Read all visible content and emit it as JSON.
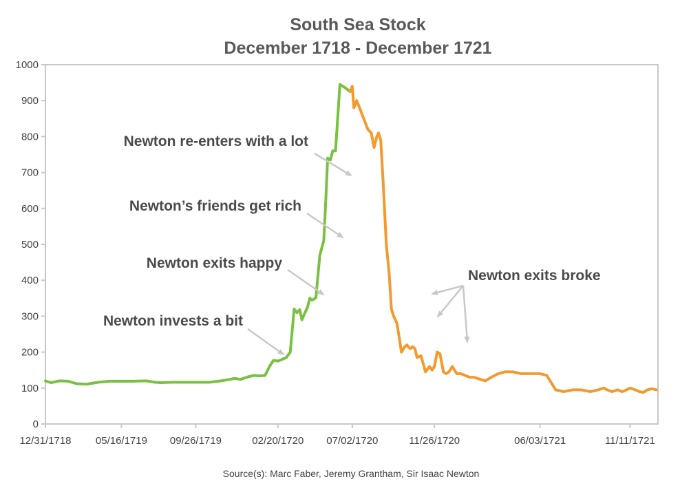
{
  "chart_data": {
    "type": "line",
    "title": "South Sea Stock",
    "subtitle": "December 1718 - December 1721",
    "xlabel": "",
    "ylabel": "",
    "ylim": [
      0,
      1000
    ],
    "yticks": [
      0,
      100,
      200,
      300,
      400,
      500,
      600,
      700,
      800,
      900,
      1000
    ],
    "x_tick_labels": [
      "12/31/1718",
      "05/16/1719",
      "09/26/1719",
      "02/20/1720",
      "07/02/1720",
      "11/26/1720",
      "06/03/1721",
      "11/11/1721"
    ],
    "grid": false,
    "legend": "none",
    "series": [
      {
        "color": "#7ac142",
        "x": [
          "12/31/1718",
          "01/10/1719",
          "01/25/1719",
          "02/10/1719",
          "02/25/1719",
          "03/15/1719",
          "04/05/1719",
          "04/25/1719",
          "05/16/1719",
          "06/05/1719",
          "06/30/1719",
          "07/15/1719",
          "07/25/1719",
          "08/15/1719",
          "09/05/1719",
          "09/26/1719",
          "10/20/1719",
          "11/10/1719",
          "11/25/1719",
          "12/05/1719",
          "12/15/1719",
          "12/28/1719",
          "01/08/1720",
          "01/18/1720",
          "01/28/1720",
          "02/05/1720",
          "02/12/1720",
          "02/20/1720",
          "02/28/1720",
          "03/06/1720",
          "03/13/1720",
          "03/20/1720",
          "03/25/1720",
          "03/30/1720",
          "04/03/1720",
          "04/07/1720",
          "04/10/1720",
          "04/13/1720",
          "04/17/1720",
          "04/21/1720",
          "04/25/1720",
          "04/28/1720",
          "05/05/1720",
          "05/12/1720",
          "05/15/1720",
          "05/19/1720",
          "05/24/1720",
          "05/28/1720",
          "06/02/1720",
          "06/05/1720",
          "06/10/1720",
          "06/15/1720",
          "06/20/1720",
          "06/24/1720",
          "06/28/1720"
        ],
        "values": [
          120,
          115,
          120,
          119,
          112,
          111,
          116,
          119,
          119,
          119,
          120,
          116,
          115,
          116,
          116,
          116,
          116,
          120,
          124,
          127,
          124,
          131,
          135,
          134,
          135,
          160,
          177,
          175,
          180,
          185,
          200,
          320,
          310,
          318,
          290,
          305,
          315,
          325,
          350,
          345,
          348,
          352,
          470,
          510,
          600,
          740,
          735,
          760,
          760,
          830,
          945,
          940,
          935,
          930,
          925
        ],
        "annotation_labels": [
          "Newton invests a bit",
          "Newton exits happy",
          "Newton's friends get rich",
          "Newton re-enters with a lot"
        ]
      },
      {
        "color": "#f39a2e",
        "x": [
          "06/28/1720",
          "07/02/1720",
          "07/05/1720",
          "07/10/1720",
          "07/15/1720",
          "07/20/1720",
          "07/30/1720",
          "08/05/1720",
          "08/10/1720",
          "08/15/1720",
          "08/18/1720",
          "08/22/1720",
          "08/26/1720",
          "09/01/1720",
          "09/06/1720",
          "09/10/1720",
          "09/14/1720",
          "09/20/1720",
          "09/28/1720",
          "10/04/1720",
          "10/08/1720",
          "10/10/1720",
          "10/14/1720",
          "10/18/1720",
          "10/22/1720",
          "10/26/1720",
          "11/02/1720",
          "11/10/1720",
          "11/17/1720",
          "11/22/1720",
          "11/26/1720",
          "12/01/1720",
          "12/06/1720",
          "12/12/1720",
          "12/17/1720",
          "12/22/1720",
          "12/28/1720",
          "01/05/1721",
          "01/12/1721",
          "01/20/1721",
          "01/28/1721",
          "02/05/1721",
          "02/15/1721",
          "02/25/1721",
          "03/08/1721",
          "03/20/1721",
          "04/01/1721",
          "04/15/1721",
          "05/01/1721",
          "05/15/1721",
          "06/03/1721",
          "06/15/1721",
          "07/01/1721",
          "07/15/1721",
          "08/01/1721",
          "08/15/1721",
          "09/01/1721",
          "09/15/1721",
          "09/25/1721",
          "10/01/1721",
          "10/10/1721",
          "10/20/1721",
          "10/28/1721",
          "11/05/1721",
          "11/11/1721",
          "11/20/1721",
          "11/28/1721",
          "12/05/1721",
          "12/12/1721",
          "12/20/1721",
          "12/28/1721"
        ],
        "values": [
          925,
          940,
          880,
          900,
          880,
          860,
          820,
          810,
          770,
          800,
          810,
          790,
          680,
          500,
          420,
          320,
          300,
          280,
          200,
          215,
          220,
          215,
          210,
          215,
          210,
          185,
          190,
          145,
          160,
          150,
          160,
          200,
          195,
          145,
          140,
          145,
          160,
          140,
          140,
          135,
          130,
          130,
          125,
          120,
          130,
          140,
          145,
          145,
          140,
          140,
          140,
          135,
          95,
          90,
          95,
          95,
          90,
          95,
          100,
          95,
          90,
          95,
          90,
          95,
          100,
          95,
          90,
          88,
          95,
          98,
          95
        ],
        "annotation_labels": [
          "Newton exits broke"
        ]
      }
    ],
    "annotations": [
      "Newton re-enters with a lot",
      "Newton’s friends get rich",
      "Newton exits happy",
      "Newton invests a bit",
      "Newton exits broke"
    ],
    "source": "Source(s): Marc Faber, Jeremy Grantham, Sir Isaac Newton"
  }
}
